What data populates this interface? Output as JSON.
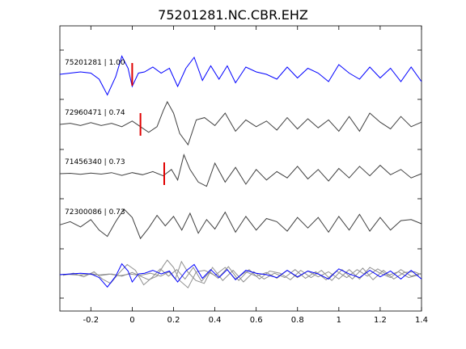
{
  "chart_data": {
    "type": "line",
    "title": "75201281.NC.CBR.EHZ",
    "xlabel": "",
    "ylabel": "",
    "xlim": [
      -0.35,
      1.4
    ],
    "x_ticks": [
      -0.2,
      0,
      0.2,
      0.4,
      0.6,
      0.8,
      1,
      1.2,
      1.4
    ],
    "x_tick_labels": [
      "-0.2",
      "0",
      "0.2",
      "0.4",
      "0.6",
      "0.8",
      "1",
      "1.2",
      "1.4"
    ],
    "grid": false,
    "colors": {
      "primary": "#0000ff",
      "secondary": "#404040",
      "overlay": "#909090",
      "pick": "#e00000",
      "axis": "#000000"
    },
    "traces": [
      {
        "label": "75201281 | 1.00",
        "color": "#0000ff",
        "pick_time": 0.0,
        "x": [
          -0.35,
          -0.3,
          -0.25,
          -0.2,
          -0.16,
          -0.12,
          -0.08,
          -0.05,
          -0.02,
          0.0,
          0.03,
          0.06,
          0.1,
          0.14,
          0.18,
          0.22,
          0.26,
          0.3,
          0.34,
          0.38,
          0.42,
          0.46,
          0.5,
          0.55,
          0.6,
          0.65,
          0.7,
          0.75,
          0.8,
          0.85,
          0.9,
          0.95,
          1.0,
          1.05,
          1.1,
          1.15,
          1.2,
          1.25,
          1.3,
          1.35,
          1.4
        ],
        "y": [
          0.0,
          0.05,
          0.1,
          0.05,
          -0.2,
          -0.85,
          -0.1,
          0.75,
          0.25,
          -0.5,
          0.05,
          0.1,
          0.3,
          0.05,
          0.25,
          -0.5,
          0.25,
          0.7,
          -0.25,
          0.35,
          -0.2,
          0.35,
          -0.35,
          0.3,
          0.1,
          0.0,
          -0.2,
          0.3,
          -0.15,
          0.25,
          0.05,
          -0.3,
          0.4,
          0.05,
          -0.2,
          0.3,
          -0.15,
          0.25,
          -0.3,
          0.3,
          -0.3
        ]
      },
      {
        "label": "72960471 | 0.74",
        "color": "#404040",
        "pick_time": 0.04,
        "x": [
          -0.35,
          -0.3,
          -0.25,
          -0.2,
          -0.15,
          -0.1,
          -0.05,
          0.0,
          0.04,
          0.08,
          0.12,
          0.15,
          0.17,
          0.2,
          0.23,
          0.27,
          0.31,
          0.35,
          0.4,
          0.45,
          0.5,
          0.55,
          0.6,
          0.65,
          0.7,
          0.75,
          0.8,
          0.85,
          0.9,
          0.95,
          1.0,
          1.05,
          1.1,
          1.15,
          1.2,
          1.25,
          1.3,
          1.35,
          1.4
        ],
        "y": [
          0.0,
          0.05,
          -0.05,
          0.08,
          -0.05,
          0.05,
          -0.1,
          0.15,
          -0.1,
          -0.35,
          -0.1,
          0.6,
          1.0,
          0.5,
          -0.4,
          -0.9,
          0.2,
          0.3,
          -0.05,
          0.5,
          -0.3,
          0.2,
          -0.1,
          0.15,
          -0.25,
          0.3,
          -0.2,
          0.25,
          -0.15,
          0.2,
          -0.3,
          0.35,
          -0.3,
          0.5,
          0.1,
          -0.2,
          0.35,
          -0.1,
          0.1
        ]
      },
      {
        "label": "71456340 | 0.73",
        "color": "#404040",
        "pick_time": 0.155,
        "x": [
          -0.35,
          -0.3,
          -0.25,
          -0.2,
          -0.15,
          -0.1,
          -0.05,
          0.0,
          0.05,
          0.1,
          0.15,
          0.19,
          0.22,
          0.25,
          0.28,
          0.32,
          0.36,
          0.4,
          0.45,
          0.5,
          0.55,
          0.6,
          0.65,
          0.7,
          0.75,
          0.8,
          0.85,
          0.9,
          0.95,
          1.0,
          1.05,
          1.1,
          1.15,
          1.2,
          1.25,
          1.3,
          1.35,
          1.4
        ],
        "y": [
          0.0,
          0.02,
          -0.03,
          0.03,
          -0.02,
          0.05,
          -0.08,
          0.05,
          -0.05,
          0.1,
          -0.1,
          0.2,
          -0.3,
          0.9,
          0.2,
          -0.4,
          -0.6,
          0.5,
          -0.4,
          0.3,
          -0.5,
          0.2,
          -0.3,
          0.1,
          -0.2,
          0.35,
          -0.25,
          0.2,
          -0.35,
          0.25,
          -0.2,
          0.35,
          -0.1,
          0.4,
          -0.05,
          0.2,
          -0.2,
          0.0
        ]
      },
      {
        "label": "72300086 | 0.73",
        "color": "#404040",
        "pick_time": null,
        "x": [
          -0.35,
          -0.3,
          -0.25,
          -0.2,
          -0.16,
          -0.12,
          -0.08,
          -0.04,
          0.0,
          0.04,
          0.08,
          0.12,
          0.16,
          0.2,
          0.24,
          0.28,
          0.32,
          0.36,
          0.4,
          0.45,
          0.5,
          0.55,
          0.6,
          0.65,
          0.7,
          0.75,
          0.8,
          0.85,
          0.9,
          0.95,
          1.0,
          1.05,
          1.1,
          1.15,
          1.2,
          1.25,
          1.3,
          1.35,
          1.4
        ],
        "y": [
          -0.05,
          0.1,
          -0.15,
          0.2,
          -0.3,
          -0.6,
          0.1,
          0.7,
          0.3,
          -0.7,
          -0.2,
          0.4,
          -0.1,
          0.35,
          -0.3,
          0.5,
          -0.45,
          0.2,
          -0.25,
          0.55,
          -0.4,
          0.35,
          -0.3,
          0.25,
          0.1,
          -0.35,
          0.3,
          -0.2,
          0.3,
          -0.4,
          0.35,
          -0.3,
          0.45,
          -0.35,
          0.3,
          -0.3,
          0.15,
          0.2,
          0.0
        ]
      }
    ],
    "overlay": {
      "description_of_traces": "stack",
      "series": [
        {
          "color": "#909090",
          "source_trace": 1
        },
        {
          "color": "#909090",
          "source_trace": 2
        },
        {
          "color": "#909090",
          "source_trace": 3
        },
        {
          "color": "#0000ff",
          "source_trace": 0
        }
      ]
    }
  }
}
